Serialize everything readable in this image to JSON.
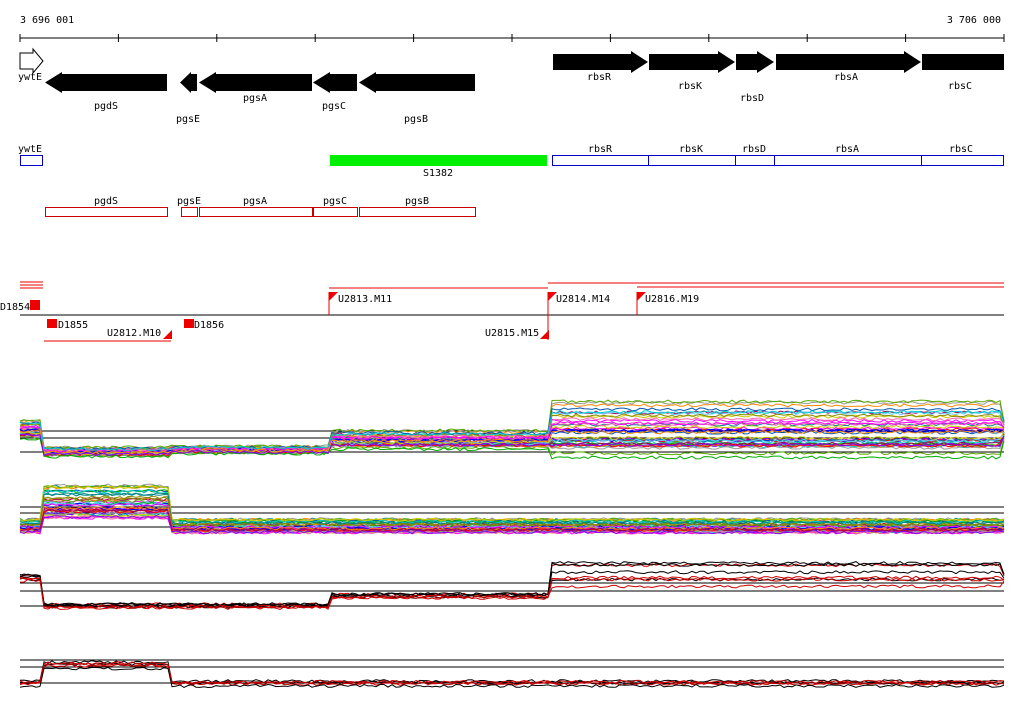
{
  "ruler": {
    "start_label": "3 696 001",
    "end_label": "3 706 000"
  },
  "genes_top": [
    {
      "id": "ywtE",
      "label": "ywtE",
      "outline": true
    },
    {
      "id": "pgdS",
      "label": "pgdS"
    },
    {
      "id": "pgsE",
      "label": "pgsE"
    },
    {
      "id": "pgsA",
      "label": "pgsA"
    },
    {
      "id": "pgsC",
      "label": "pgsC"
    },
    {
      "id": "pgsB",
      "label": "pgsB"
    },
    {
      "id": "rbsR",
      "label": "rbsR"
    },
    {
      "id": "rbsK",
      "label": "rbsK"
    },
    {
      "id": "rbsD",
      "label": "rbsD"
    },
    {
      "id": "rbsA",
      "label": "rbsA"
    },
    {
      "id": "rbsC",
      "label": "rbsC"
    }
  ],
  "green_segment": {
    "label": "S1382",
    "color": "#00ee00"
  },
  "blue_boxes": [
    "ywtE",
    "rbsR",
    "rbsK",
    "rbsD",
    "rbsA",
    "rbsC"
  ],
  "red_boxes": [
    "pgdS",
    "pgsE",
    "pgsA",
    "pgsC",
    "pgsB"
  ],
  "colors": {
    "gene": "#000000",
    "forward_box": "#0000cc",
    "reverse_box": "#cc0000",
    "marker": "#ee0000"
  },
  "markers": [
    {
      "id": "d1854",
      "label": "D1854"
    },
    {
      "id": "d1855",
      "label": "D1855"
    },
    {
      "id": "u2812",
      "label": "U2812.M10"
    },
    {
      "id": "d1856",
      "label": "D1856"
    },
    {
      "id": "u2813",
      "label": "U2813.M11"
    },
    {
      "id": "u2814",
      "label": "U2814.M14"
    },
    {
      "id": "u2815",
      "label": "U2815.M15"
    },
    {
      "id": "u2816",
      "label": "U2816.M19"
    }
  ],
  "expression_panels": [
    {
      "id": "panel1",
      "traces": 40,
      "palette": "multi"
    },
    {
      "id": "panel2",
      "traces": 40,
      "palette": "multi"
    },
    {
      "id": "panel3",
      "traces": 8,
      "palette": "red-black"
    },
    {
      "id": "panel4",
      "traces": 6,
      "palette": "red-black"
    }
  ]
}
